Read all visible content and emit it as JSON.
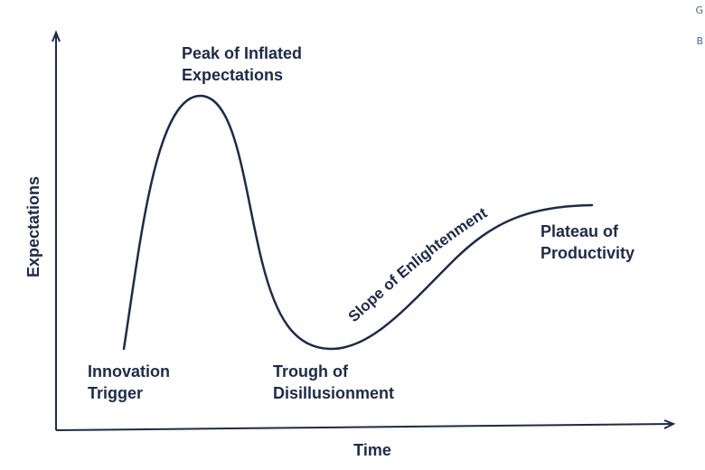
{
  "diagram": {
    "axis_labels": {
      "y": "Expectations",
      "x": "Time"
    },
    "phases": [
      {
        "id": "innovation-trigger",
        "lines": [
          "Innovation",
          "Trigger"
        ]
      },
      {
        "id": "peak",
        "lines": [
          "Peak of Inflated",
          "Expectations"
        ]
      },
      {
        "id": "trough",
        "lines": [
          "Trough of",
          "Disillusionment"
        ]
      },
      {
        "id": "slope",
        "lines": [
          "Slope of Enlightenment"
        ]
      },
      {
        "id": "plateau",
        "lines": [
          "Plateau of",
          "Productivity"
        ]
      }
    ],
    "colors": {
      "ink": "#1c2b4b",
      "side_text": "#4a6a9a"
    }
  },
  "side_fragments": [
    "G",
    "B"
  ]
}
